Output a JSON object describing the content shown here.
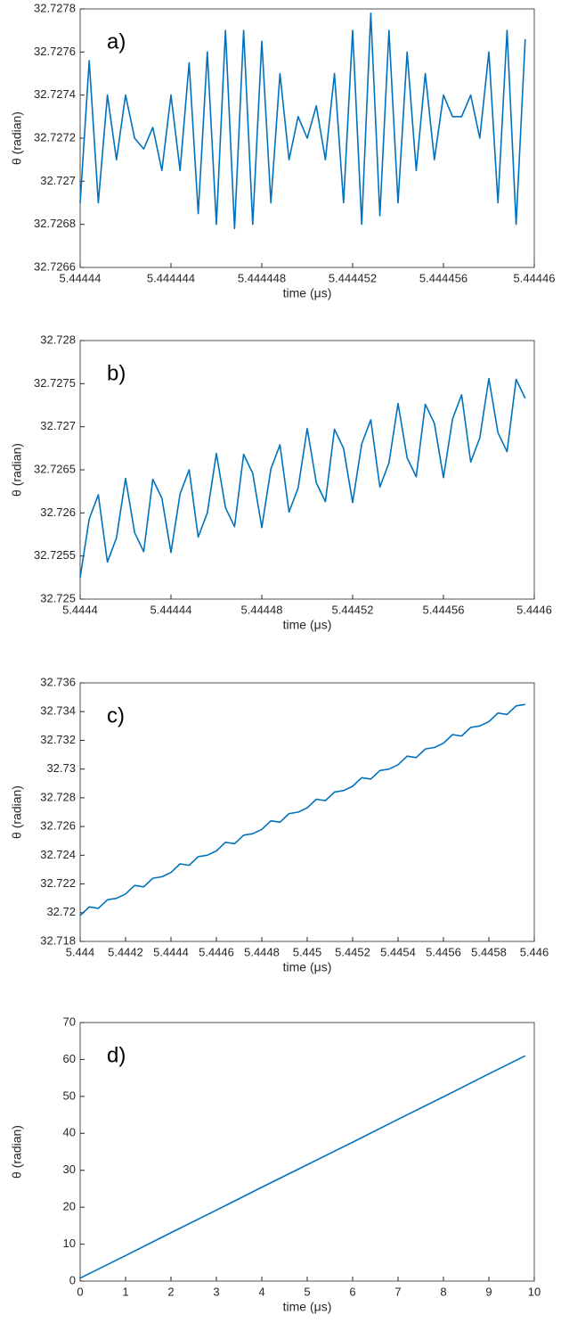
{
  "chart_data": [
    {
      "type": "line",
      "annotation": "a)",
      "xlabel": "time (μs)",
      "ylabel": "θ (radian)",
      "color": "#0072bd",
      "grid": false,
      "xlim": [
        5.44444,
        5.44446
      ],
      "xticks": [
        5.44444,
        5.444444,
        5.444448,
        5.444452,
        5.444456,
        5.44446
      ],
      "ylim": [
        32.7266,
        32.7278
      ],
      "yticks": [
        32.7266,
        32.7268,
        32.727,
        32.7272,
        32.7274,
        32.7276,
        32.7278
      ],
      "x": [
        5.44444,
        5.4444404,
        5.4444408,
        5.4444412,
        5.4444416,
        5.444442,
        5.4444424,
        5.4444428,
        5.4444432,
        5.4444436,
        5.444444,
        5.4444444,
        5.4444448,
        5.4444452,
        5.4444456,
        5.444446,
        5.4444464,
        5.4444468,
        5.4444472,
        5.4444476,
        5.444448,
        5.4444484,
        5.4444488,
        5.4444492,
        5.4444496,
        5.44445,
        5.4444504,
        5.4444508,
        5.4444512,
        5.4444516,
        5.444452,
        5.4444524,
        5.4444528,
        5.4444532,
        5.4444536,
        5.444454,
        5.4444544,
        5.4444548,
        5.4444552,
        5.4444556,
        5.444456,
        5.4444564,
        5.4444568,
        5.4444572,
        5.4444576,
        5.444458,
        5.4444584,
        5.4444588,
        5.4444592,
        5.4444596
      ],
      "values": [
        32.7269,
        32.72756,
        32.7269,
        32.7274,
        32.7271,
        32.7274,
        32.7272,
        32.72715,
        32.72725,
        32.72705,
        32.7274,
        32.72705,
        32.72755,
        32.72685,
        32.7276,
        32.7268,
        32.7277,
        32.72678,
        32.7277,
        32.7268,
        32.72765,
        32.7269,
        32.7275,
        32.7271,
        32.7273,
        32.7272,
        32.72735,
        32.7271,
        32.7275,
        32.7269,
        32.7277,
        32.7268,
        32.72778,
        32.72684,
        32.7277,
        32.7269,
        32.7276,
        32.72705,
        32.7275,
        32.7271,
        32.7274,
        32.7273,
        32.7273,
        32.7274,
        32.7272,
        32.7276,
        32.7269,
        32.7277,
        32.7268,
        32.72766
      ]
    },
    {
      "type": "line",
      "annotation": "b)",
      "xlabel": "time (μs)",
      "ylabel": "θ (radian)",
      "color": "#0072bd",
      "grid": false,
      "xlim": [
        5.4444,
        5.4446
      ],
      "xticks": [
        5.4444,
        5.44444,
        5.44448,
        5.44452,
        5.44456,
        5.4446
      ],
      "ylim": [
        32.725,
        32.728
      ],
      "yticks": [
        32.725,
        32.7255,
        32.726,
        32.7265,
        32.727,
        32.7275,
        32.728
      ],
      "x": [
        5.4444,
        5.444404,
        5.444408,
        5.444412,
        5.444416,
        5.44442,
        5.444424,
        5.444428,
        5.444432,
        5.444436,
        5.44444,
        5.444444,
        5.444448,
        5.444452,
        5.444456,
        5.44446,
        5.444464,
        5.444468,
        5.444472,
        5.444476,
        5.44448,
        5.444484,
        5.444488,
        5.444492,
        5.444496,
        5.4445,
        5.444504,
        5.444508,
        5.444512,
        5.444516,
        5.44452,
        5.444524,
        5.444528,
        5.444532,
        5.444536,
        5.44454,
        5.444544,
        5.444548,
        5.444552,
        5.444556,
        5.44456,
        5.444564,
        5.444568,
        5.444572,
        5.444576,
        5.44458,
        5.444584,
        5.444588,
        5.444592,
        5.444596
      ],
      "values": [
        32.72525,
        32.72593,
        32.72621,
        32.72543,
        32.72571,
        32.7264,
        32.72577,
        32.72555,
        32.72639,
        32.72617,
        32.72554,
        32.72622,
        32.7265,
        32.72572,
        32.726,
        32.72669,
        32.72606,
        32.72584,
        32.72668,
        32.72646,
        32.72583,
        32.72651,
        32.72679,
        32.72601,
        32.72629,
        32.72698,
        32.72635,
        32.72613,
        32.72697,
        32.72675,
        32.72612,
        32.7268,
        32.72708,
        32.7263,
        32.72658,
        32.72727,
        32.72664,
        32.72642,
        32.72726,
        32.72704,
        32.72641,
        32.72709,
        32.72737,
        32.72659,
        32.72687,
        32.72756,
        32.72693,
        32.72671,
        32.72755,
        32.72733
      ]
    },
    {
      "type": "line",
      "annotation": "c)",
      "xlabel": "time (μs)",
      "ylabel": "θ (radian)",
      "color": "#0072bd",
      "grid": false,
      "xlim": [
        5.444,
        5.446
      ],
      "xticks": [
        5.444,
        5.4442,
        5.4444,
        5.4446,
        5.4448,
        5.445,
        5.4452,
        5.4454,
        5.4456,
        5.4458,
        5.446
      ],
      "ylim": [
        32.718,
        32.736
      ],
      "yticks": [
        32.718,
        32.72,
        32.722,
        32.724,
        32.726,
        32.728,
        32.73,
        32.732,
        32.734,
        32.736
      ],
      "x": [
        5.444,
        5.44404,
        5.44408,
        5.44412,
        5.44416,
        5.4442,
        5.44424,
        5.44428,
        5.44432,
        5.44436,
        5.4444,
        5.44444,
        5.44448,
        5.44452,
        5.44456,
        5.4446,
        5.44464,
        5.44468,
        5.44472,
        5.44476,
        5.4448,
        5.44484,
        5.44488,
        5.44492,
        5.44496,
        5.445,
        5.44504,
        5.44508,
        5.44512,
        5.44516,
        5.4452,
        5.44524,
        5.44528,
        5.44532,
        5.44536,
        5.4454,
        5.44544,
        5.44548,
        5.44552,
        5.44556,
        5.4456,
        5.44564,
        5.44568,
        5.44572,
        5.44576,
        5.4458,
        5.44584,
        5.44588,
        5.44592,
        5.44596
      ],
      "values": [
        32.7198,
        32.7204,
        32.7203,
        32.7209,
        32.721,
        32.7213,
        32.7219,
        32.7218,
        32.7224,
        32.7225,
        32.7228,
        32.7234,
        32.7233,
        32.7239,
        32.724,
        32.7243,
        32.7249,
        32.7248,
        32.7254,
        32.7255,
        32.7258,
        32.7264,
        32.7263,
        32.7269,
        32.727,
        32.7273,
        32.7279,
        32.7278,
        32.7284,
        32.7285,
        32.7288,
        32.7294,
        32.7293,
        32.7299,
        32.73,
        32.7303,
        32.7309,
        32.7308,
        32.7314,
        32.7315,
        32.7318,
        32.7324,
        32.7323,
        32.7329,
        32.733,
        32.7333,
        32.7339,
        32.7338,
        32.7344,
        32.7345
      ]
    },
    {
      "type": "line",
      "annotation": "d)",
      "xlabel": "time (μs)",
      "ylabel": "θ (radian)",
      "color": "#0072bd",
      "grid": false,
      "xlim": [
        0,
        10
      ],
      "xticks": [
        0,
        1,
        2,
        3,
        4,
        5,
        6,
        7,
        8,
        9,
        10
      ],
      "ylim": [
        0,
        70
      ],
      "yticks": [
        0,
        10,
        20,
        30,
        40,
        50,
        60,
        70
      ],
      "x": [
        0,
        1,
        2,
        3,
        4,
        5,
        6,
        7,
        8,
        9,
        9.8
      ],
      "values": [
        0.8,
        6.9,
        13.1,
        19.2,
        25.4,
        31.5,
        37.6,
        43.8,
        49.9,
        56.1,
        61
      ]
    }
  ]
}
